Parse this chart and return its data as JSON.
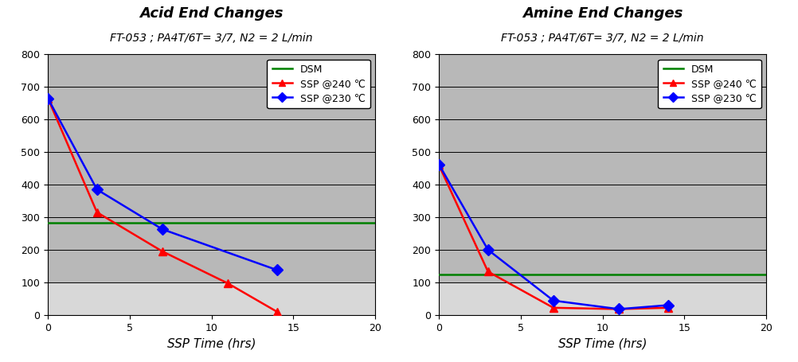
{
  "left": {
    "title": "Acid End Changes",
    "subtitle": "FT-053 ; PA4T/6T= 3/7, N2 = 2 L/min",
    "xlabel": "SSP Time (hrs)",
    "ylim": [
      0,
      800
    ],
    "xlim": [
      0,
      20
    ],
    "yticks": [
      0,
      100,
      200,
      300,
      400,
      500,
      600,
      700,
      800
    ],
    "xticks": [
      0,
      5,
      10,
      15,
      20
    ],
    "dsm_y": 283,
    "dsm_color": "#008000",
    "series_240": {
      "x": [
        0,
        3,
        7,
        11,
        14
      ],
      "y": [
        665,
        315,
        195,
        97,
        10
      ],
      "color": "#ff0000",
      "marker": "^",
      "label": "SSP @240 ℃"
    },
    "series_230": {
      "x": [
        0,
        3,
        7,
        14
      ],
      "y": [
        665,
        385,
        263,
        138
      ],
      "color": "#0000ff",
      "marker": "D",
      "label": "SSP @230 ℃"
    }
  },
  "right": {
    "title": "Amine End Changes",
    "subtitle": "FT-053 ; PA4T/6T= 3/7, N2 = 2 L/min",
    "xlabel": "SSP Time (hrs)",
    "ylim": [
      0,
      800
    ],
    "xlim": [
      0,
      20
    ],
    "yticks": [
      0,
      100,
      200,
      300,
      400,
      500,
      600,
      700,
      800
    ],
    "xticks": [
      0,
      5,
      10,
      15,
      20
    ],
    "dsm_y": 125,
    "dsm_color": "#008000",
    "series_240": {
      "x": [
        0,
        3,
        7,
        11,
        14
      ],
      "y": [
        460,
        133,
        22,
        18,
        22
      ],
      "color": "#ff0000",
      "marker": "^",
      "label": "SSP @240 ℃"
    },
    "series_230": {
      "x": [
        0,
        3,
        7,
        11,
        14
      ],
      "y": [
        462,
        200,
        44,
        18,
        30
      ],
      "color": "#0000ff",
      "marker": "D",
      "label": "SSP @230 ℃"
    }
  },
  "bg_upper": "#b8b8b8",
  "bg_lower": "#d8d8d8",
  "bg_split": 100,
  "legend_dsm_label": "DSM",
  "title_fontsize": 13,
  "title_fontweight": "bold",
  "subtitle_fontsize": 10,
  "axis_label_fontsize": 11,
  "tick_fontsize": 9,
  "legend_fontsize": 9,
  "marker_size": 7,
  "line_width": 1.8
}
